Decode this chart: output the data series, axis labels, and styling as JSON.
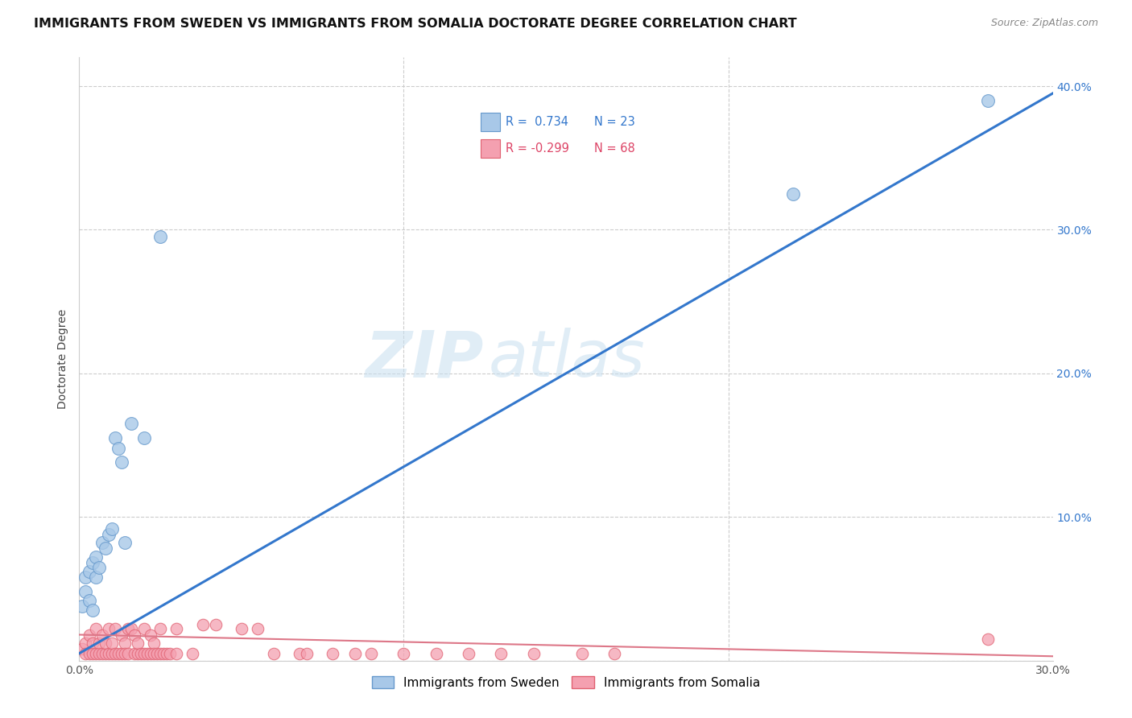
{
  "title": "IMMIGRANTS FROM SWEDEN VS IMMIGRANTS FROM SOMALIA DOCTORATE DEGREE CORRELATION CHART",
  "source": "Source: ZipAtlas.com",
  "ylabel": "Doctorate Degree",
  "xlim": [
    0.0,
    0.3
  ],
  "ylim": [
    0.0,
    0.42
  ],
  "xticks": [
    0.0,
    0.05,
    0.1,
    0.15,
    0.2,
    0.25,
    0.3
  ],
  "yticks": [
    0.0,
    0.1,
    0.2,
    0.3,
    0.4
  ],
  "ytick_labels_right": [
    "",
    "10.0%",
    "20.0%",
    "30.0%",
    "40.0%"
  ],
  "xtick_labels": [
    "0.0%",
    "",
    "",
    "",
    "",
    "",
    "30.0%"
  ],
  "legend_label1": "Immigrants from Sweden",
  "legend_label2": "Immigrants from Somalia",
  "blue_scatter_color": "#a8c8e8",
  "blue_scatter_edge": "#6699cc",
  "pink_scatter_color": "#f4a0b0",
  "pink_scatter_edge": "#e06070",
  "blue_line_color": "#3377cc",
  "pink_line_color": "#dd7788",
  "sweden_points": [
    [
      0.001,
      0.038
    ],
    [
      0.002,
      0.058
    ],
    [
      0.002,
      0.048
    ],
    [
      0.003,
      0.042
    ],
    [
      0.003,
      0.062
    ],
    [
      0.004,
      0.035
    ],
    [
      0.004,
      0.068
    ],
    [
      0.005,
      0.072
    ],
    [
      0.005,
      0.058
    ],
    [
      0.006,
      0.065
    ],
    [
      0.007,
      0.082
    ],
    [
      0.008,
      0.078
    ],
    [
      0.009,
      0.088
    ],
    [
      0.01,
      0.092
    ],
    [
      0.011,
      0.155
    ],
    [
      0.012,
      0.148
    ],
    [
      0.013,
      0.138
    ],
    [
      0.014,
      0.082
    ],
    [
      0.016,
      0.165
    ],
    [
      0.02,
      0.155
    ],
    [
      0.025,
      0.295
    ],
    [
      0.22,
      0.325
    ],
    [
      0.28,
      0.39
    ]
  ],
  "somalia_points": [
    [
      0.001,
      0.008
    ],
    [
      0.002,
      0.012
    ],
    [
      0.002,
      0.005
    ],
    [
      0.003,
      0.018
    ],
    [
      0.003,
      0.005
    ],
    [
      0.004,
      0.012
    ],
    [
      0.004,
      0.005
    ],
    [
      0.005,
      0.022
    ],
    [
      0.005,
      0.005
    ],
    [
      0.006,
      0.012
    ],
    [
      0.006,
      0.005
    ],
    [
      0.007,
      0.005
    ],
    [
      0.007,
      0.018
    ],
    [
      0.008,
      0.005
    ],
    [
      0.008,
      0.012
    ],
    [
      0.009,
      0.005
    ],
    [
      0.009,
      0.022
    ],
    [
      0.01,
      0.005
    ],
    [
      0.01,
      0.012
    ],
    [
      0.011,
      0.005
    ],
    [
      0.011,
      0.022
    ],
    [
      0.012,
      0.005
    ],
    [
      0.013,
      0.005
    ],
    [
      0.013,
      0.018
    ],
    [
      0.014,
      0.012
    ],
    [
      0.014,
      0.005
    ],
    [
      0.015,
      0.022
    ],
    [
      0.015,
      0.005
    ],
    [
      0.016,
      0.022
    ],
    [
      0.017,
      0.005
    ],
    [
      0.017,
      0.018
    ],
    [
      0.018,
      0.005
    ],
    [
      0.018,
      0.012
    ],
    [
      0.019,
      0.005
    ],
    [
      0.02,
      0.022
    ],
    [
      0.02,
      0.005
    ],
    [
      0.021,
      0.005
    ],
    [
      0.022,
      0.005
    ],
    [
      0.022,
      0.018
    ],
    [
      0.023,
      0.012
    ],
    [
      0.023,
      0.005
    ],
    [
      0.024,
      0.005
    ],
    [
      0.025,
      0.005
    ],
    [
      0.025,
      0.022
    ],
    [
      0.026,
      0.005
    ],
    [
      0.027,
      0.005
    ],
    [
      0.028,
      0.005
    ],
    [
      0.03,
      0.022
    ],
    [
      0.03,
      0.005
    ],
    [
      0.035,
      0.005
    ],
    [
      0.038,
      0.025
    ],
    [
      0.042,
      0.025
    ],
    [
      0.05,
      0.022
    ],
    [
      0.055,
      0.022
    ],
    [
      0.06,
      0.005
    ],
    [
      0.068,
      0.005
    ],
    [
      0.07,
      0.005
    ],
    [
      0.078,
      0.005
    ],
    [
      0.085,
      0.005
    ],
    [
      0.09,
      0.005
    ],
    [
      0.1,
      0.005
    ],
    [
      0.11,
      0.005
    ],
    [
      0.12,
      0.005
    ],
    [
      0.13,
      0.005
    ],
    [
      0.14,
      0.005
    ],
    [
      0.155,
      0.005
    ],
    [
      0.165,
      0.005
    ],
    [
      0.28,
      0.015
    ]
  ],
  "watermark_zip": "ZIP",
  "watermark_atlas": "atlas",
  "title_fontsize": 11.5,
  "axis_label_fontsize": 10,
  "tick_fontsize": 10,
  "legend_R1": "R =  0.734",
  "legend_N1": "N = 23",
  "legend_R2": "R = -0.299",
  "legend_N2": "N = 68"
}
